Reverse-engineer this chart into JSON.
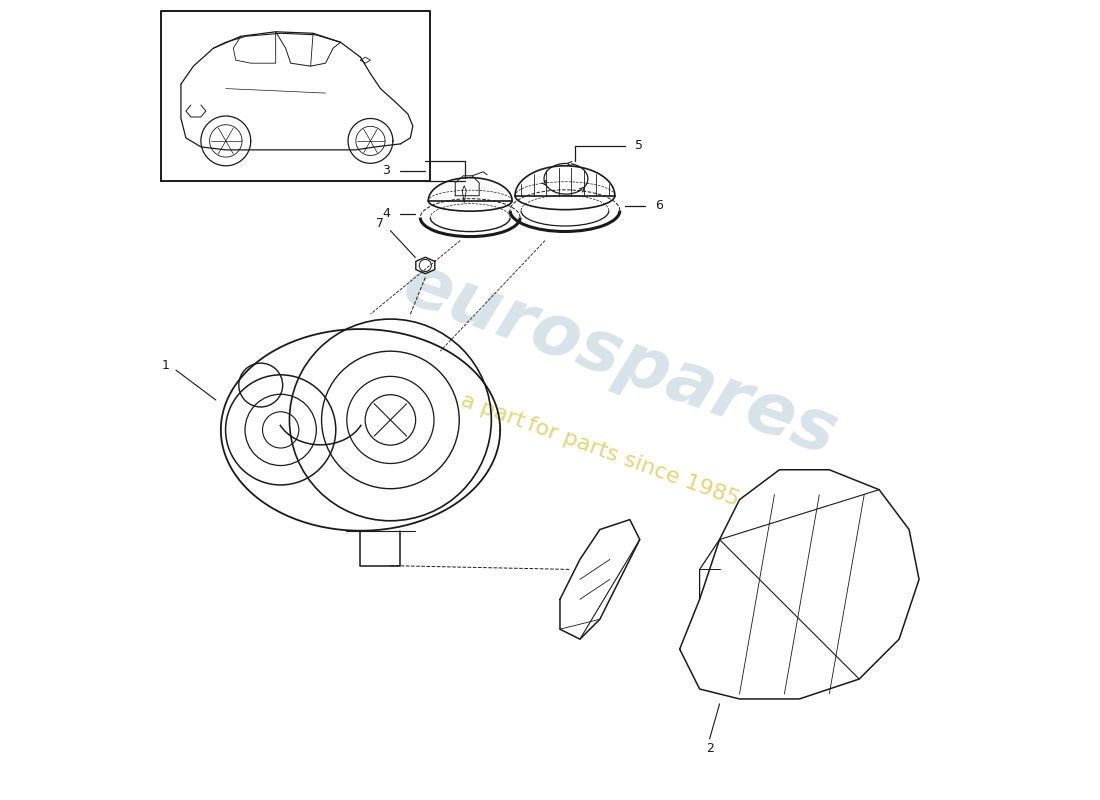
{
  "background_color": "#ffffff",
  "line_color": "#1a1a1a",
  "watermark1": "eurospares",
  "watermark2": "a part for parts since 1985",
  "watermark_color1": "#b8ccd8",
  "watermark_color2": "#d4c030",
  "figsize": [
    11.0,
    8.0
  ],
  "dpi": 100
}
